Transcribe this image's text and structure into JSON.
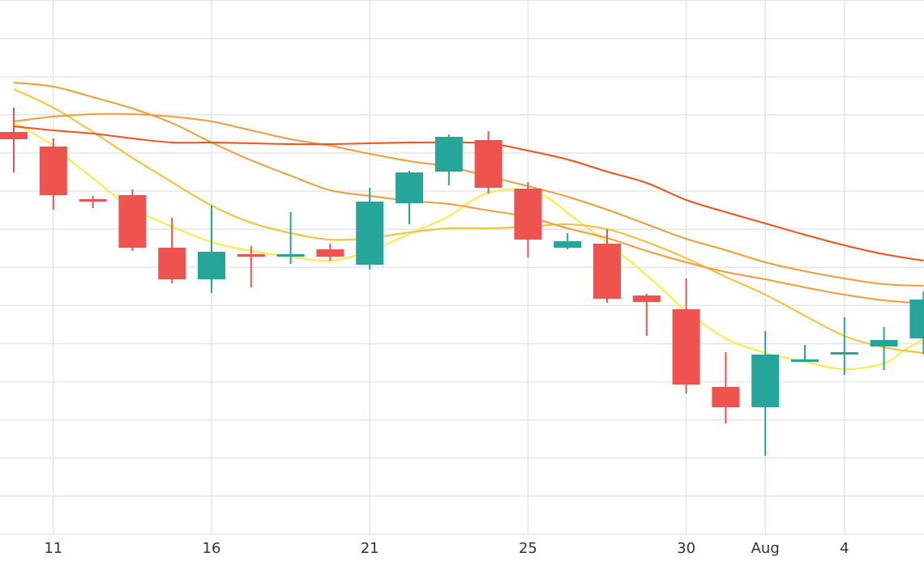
{
  "chart_data": {
    "type": "candlestick",
    "x_ticks": [
      "11",
      "16",
      "21",
      "25",
      "30",
      "Aug",
      "4"
    ],
    "y_range": [
      0,
      660
    ],
    "grid": true,
    "colors": {
      "up": "#26a69a",
      "down": "#ef5350",
      "ma_yellow": "#ffeb3b",
      "ma_gold": "#fbc02d",
      "ma_orange": "#f39c3a",
      "ma_red": "#f4511e",
      "grid": "#e6e6e6"
    },
    "candles": [
      {
        "x": 0.0,
        "open": 497,
        "close": 488,
        "high": 527,
        "low": 447
      },
      {
        "x": 1.0,
        "open": 479,
        "close": 419,
        "high": 489,
        "low": 401
      },
      {
        "x": 2.0,
        "open": 414,
        "close": 413,
        "high": 418,
        "low": 403
      },
      {
        "x": 3.0,
        "open": 419,
        "close": 354,
        "high": 426,
        "low": 350
      },
      {
        "x": 4.0,
        "open": 354,
        "close": 315,
        "high": 391,
        "low": 310
      },
      {
        "x": 5.0,
        "open": 315,
        "close": 349,
        "high": 406,
        "low": 298
      },
      {
        "x": 6.0,
        "open": 346,
        "close": 344,
        "high": 356,
        "low": 305
      },
      {
        "x": 7.0,
        "open": 345,
        "close": 346,
        "high": 398,
        "low": 334
      },
      {
        "x": 8.0,
        "open": 352,
        "close": 343,
        "high": 359,
        "low": 338
      },
      {
        "x": 9.0,
        "open": 333,
        "close": 411,
        "high": 428,
        "low": 327
      },
      {
        "x": 10.0,
        "open": 409,
        "close": 447,
        "high": 449,
        "low": 383
      },
      {
        "x": 11.0,
        "open": 448,
        "close": 491,
        "high": 494,
        "low": 431
      },
      {
        "x": 12.0,
        "open": 487,
        "close": 428,
        "high": 498,
        "low": 421
      },
      {
        "x": 13.0,
        "open": 427,
        "close": 364,
        "high": 435,
        "low": 342
      },
      {
        "x": 14.0,
        "open": 354,
        "close": 362,
        "high": 372,
        "low": 352
      },
      {
        "x": 15.0,
        "open": 359,
        "close": 291,
        "high": 377,
        "low": 286
      },
      {
        "x": 16.0,
        "open": 295,
        "close": 287,
        "high": 297,
        "low": 245
      },
      {
        "x": 17.0,
        "open": 278,
        "close": 185,
        "high": 316,
        "low": 174
      },
      {
        "x": 18.0,
        "open": 182,
        "close": 157,
        "high": 225,
        "low": 137
      },
      {
        "x": 19.0,
        "open": 157,
        "close": 222,
        "high": 251,
        "low": 97
      },
      {
        "x": 20.0,
        "open": 215,
        "close": 216,
        "high": 234,
        "low": 216
      },
      {
        "x": 21.0,
        "open": 224,
        "close": 225,
        "high": 268,
        "low": 197
      },
      {
        "x": 22.0,
        "open": 232,
        "close": 240,
        "high": 256,
        "low": 203
      },
      {
        "x": 23.0,
        "open": 242,
        "close": 290,
        "high": 300,
        "low": 222
      }
    ],
    "moving_averages": [
      {
        "color_key": "ma_yellow",
        "values": [
          [
            0.0,
            508
          ],
          [
            0.5,
            495
          ],
          [
            1.0,
            480
          ],
          [
            1.5,
            459
          ],
          [
            2.0,
            440
          ],
          [
            2.5,
            420
          ],
          [
            3.0,
            402
          ],
          [
            4.0,
            380
          ],
          [
            5.0,
            361
          ],
          [
            6.0,
            350
          ],
          [
            7.0,
            343
          ],
          [
            8.0,
            338
          ],
          [
            9.0,
            350
          ],
          [
            10.0,
            371
          ],
          [
            11.0,
            393
          ],
          [
            11.5,
            410
          ],
          [
            12.0,
            422
          ],
          [
            12.5,
            426
          ],
          [
            13.0,
            425
          ],
          [
            13.5,
            416
          ],
          [
            14.0,
            397
          ],
          [
            15.0,
            360
          ],
          [
            16.0,
            320
          ],
          [
            17.0,
            276
          ],
          [
            18.0,
            242
          ],
          [
            19.0,
            224
          ],
          [
            20.0,
            213
          ],
          [
            21.0,
            204
          ],
          [
            22.0,
            211
          ],
          [
            22.5,
            227
          ],
          [
            23.0,
            241
          ]
        ]
      },
      {
        "color_key": "ma_gold",
        "values": [
          [
            0.0,
            550
          ],
          [
            1.0,
            527
          ],
          [
            2.0,
            497
          ],
          [
            3.0,
            465
          ],
          [
            4.0,
            435
          ],
          [
            5.0,
            406
          ],
          [
            6.0,
            385
          ],
          [
            7.0,
            372
          ],
          [
            8.0,
            364
          ],
          [
            9.0,
            366
          ],
          [
            10.0,
            373
          ],
          [
            11.0,
            378
          ],
          [
            12.0,
            378
          ],
          [
            13.0,
            380
          ],
          [
            14.0,
            383
          ],
          [
            15.0,
            377
          ],
          [
            16.0,
            361
          ],
          [
            17.0,
            341
          ],
          [
            18.0,
            318
          ],
          [
            19.0,
            296
          ],
          [
            20.0,
            270
          ],
          [
            21.0,
            245
          ],
          [
            22.0,
            231
          ],
          [
            23.0,
            224
          ]
        ]
      },
      {
        "color_key": "ma_orange",
        "values": [
          [
            0.0,
            558
          ],
          [
            1.0,
            553
          ],
          [
            2.0,
            540
          ],
          [
            3.0,
            526
          ],
          [
            4.0,
            508
          ],
          [
            5.0,
            484
          ],
          [
            6.0,
            462
          ],
          [
            7.0,
            443
          ],
          [
            8.0,
            425
          ],
          [
            9.0,
            418
          ],
          [
            10.0,
            412
          ],
          [
            11.0,
            408
          ],
          [
            12.0,
            400
          ],
          [
            13.0,
            392
          ],
          [
            14.0,
            378
          ],
          [
            15.0,
            366
          ],
          [
            16.0,
            350
          ],
          [
            17.0,
            336
          ],
          [
            18.0,
            324
          ],
          [
            19.0,
            315
          ],
          [
            20.0,
            305
          ],
          [
            21.0,
            296
          ],
          [
            22.0,
            289
          ],
          [
            23.0,
            285
          ]
        ]
      },
      {
        "color_key": "ma_orange",
        "values": [
          [
            0.0,
            510
          ],
          [
            1.0,
            516
          ],
          [
            2.0,
            519
          ],
          [
            3.0,
            519
          ],
          [
            4.0,
            516
          ],
          [
            5.0,
            510
          ],
          [
            6.0,
            499
          ],
          [
            7.0,
            488
          ],
          [
            8.0,
            480
          ],
          [
            9.0,
            470
          ],
          [
            10.0,
            461
          ],
          [
            11.0,
            454
          ],
          [
            12.0,
            442
          ],
          [
            13.0,
            430
          ],
          [
            14.0,
            417
          ],
          [
            15.0,
            401
          ],
          [
            16.0,
            383
          ],
          [
            17.0,
            365
          ],
          [
            18.0,
            351
          ],
          [
            19.0,
            336
          ],
          [
            20.0,
            325
          ],
          [
            21.0,
            316
          ],
          [
            22.0,
            309
          ],
          [
            23.0,
            307
          ]
        ]
      },
      {
        "color_key": "ma_red",
        "values": [
          [
            0.0,
            504
          ],
          [
            1.0,
            499
          ],
          [
            2.0,
            495
          ],
          [
            3.0,
            489
          ],
          [
            4.0,
            484
          ],
          [
            5.0,
            484
          ],
          [
            6.0,
            483
          ],
          [
            7.0,
            482
          ],
          [
            8.0,
            482
          ],
          [
            9.0,
            483
          ],
          [
            10.0,
            484
          ],
          [
            11.0,
            484
          ],
          [
            12.0,
            483
          ],
          [
            13.0,
            474
          ],
          [
            14.0,
            463
          ],
          [
            15.0,
            448
          ],
          [
            16.0,
            434
          ],
          [
            17.0,
            413
          ],
          [
            18.0,
            398
          ],
          [
            19.0,
            384
          ],
          [
            20.0,
            370
          ],
          [
            21.0,
            357
          ],
          [
            22.0,
            346
          ],
          [
            23.0,
            338
          ]
        ]
      }
    ]
  }
}
